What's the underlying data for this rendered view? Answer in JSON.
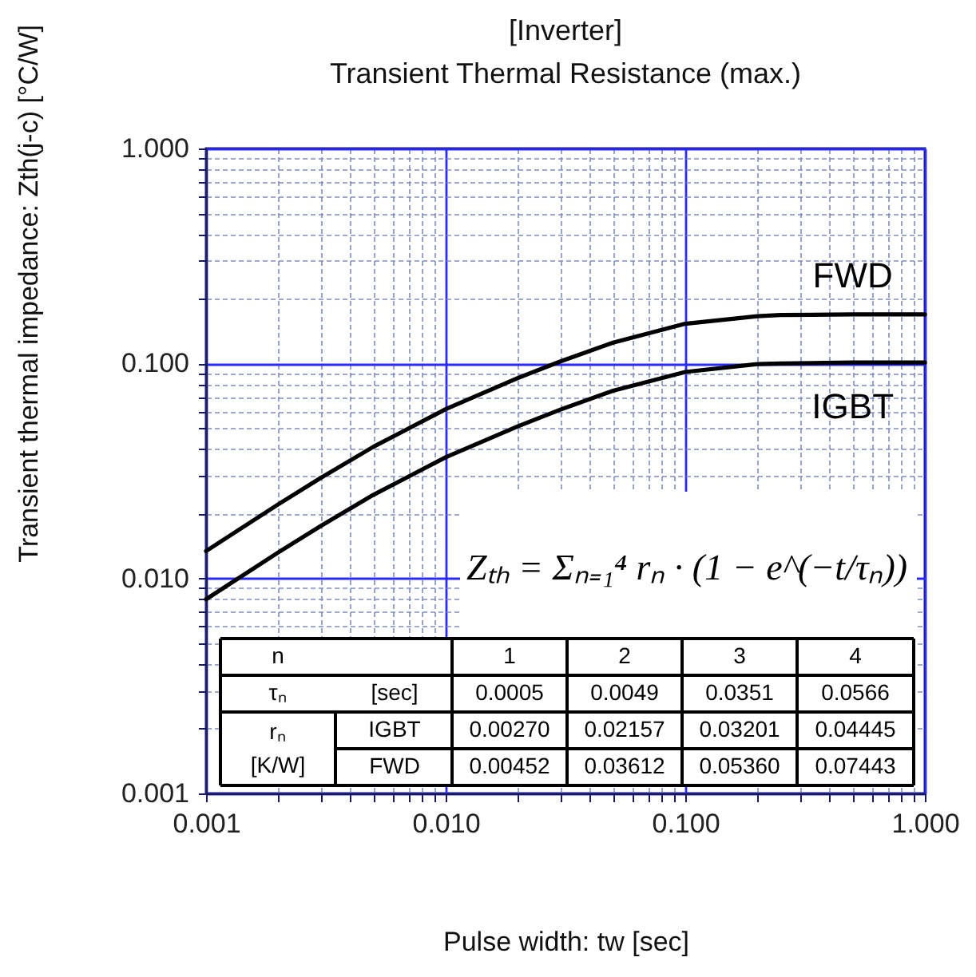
{
  "chart_data": {
    "type": "line",
    "title": "[Inverter]",
    "subtitle": "Transient Thermal Resistance (max.)",
    "xlabel": "Pulse width: tw [sec]",
    "ylabel": "Transient thermal impedance: Zth(j-c) [°C/W]",
    "x": [
      0.001,
      0.002,
      0.003,
      0.005,
      0.01,
      0.02,
      0.03,
      0.05,
      0.1,
      0.2,
      0.25,
      0.5,
      1
    ],
    "series": [
      {
        "name": "FWD",
        "color": "#000000",
        "values": [
          0.0134,
          0.0221,
          0.0293,
          0.041,
          0.0613,
          0.0855,
          0.102,
          0.125,
          0.153,
          0.166,
          0.168,
          0.169,
          0.169
        ]
      },
      {
        "name": "IGBT",
        "color": "#000000",
        "values": [
          0.008,
          0.0132,
          0.0175,
          0.0245,
          0.0366,
          0.051,
          0.0609,
          0.0747,
          0.0913,
          0.0993,
          0.1,
          0.101,
          0.101
        ]
      }
    ],
    "log": "xy",
    "xlim": [
      0.001,
      1
    ],
    "ylim": [
      0.001,
      1
    ],
    "xticks": [
      0.001,
      {
        "value": 0.002,
        "label": null
      },
      {
        "value": 0.003,
        "label": null
      },
      {
        "value": 0.004,
        "label": null
      },
      {
        "value": 0.005,
        "label": null
      },
      {
        "value": 0.006,
        "label": null
      },
      {
        "value": 0.007,
        "label": null
      },
      {
        "value": 0.008,
        "label": null
      },
      {
        "value": 0.009,
        "label": null
      },
      {
        "value": 0.01,
        "label": "0.010"
      },
      {
        "value": 0.02,
        "label": null
      },
      {
        "value": 0.03,
        "label": null
      },
      {
        "value": 0.04,
        "label": null
      },
      {
        "value": 0.05,
        "label": null
      },
      {
        "value": 0.06,
        "label": null
      },
      {
        "value": 0.07,
        "label": null
      },
      {
        "value": 0.08,
        "label": null
      },
      {
        "value": 0.09,
        "label": null
      },
      {
        "value": 0.1,
        "label": "0.100"
      },
      {
        "value": 0.2,
        "label": null
      },
      {
        "value": 0.3,
        "label": null
      },
      {
        "value": 0.4,
        "label": null
      },
      {
        "value": 0.5,
        "label": null
      },
      {
        "value": 0.6,
        "label": null
      },
      {
        "value": 0.7,
        "label": null
      },
      {
        "value": 0.8,
        "label": null
      },
      {
        "value": 0.9,
        "label": null
      },
      {
        "value": 1,
        "label": "1.000"
      }
    ],
    "yticks": [
      0.001,
      {
        "value": 0.002,
        "label": null
      },
      {
        "value": 0.003,
        "label": null
      },
      {
        "value": 0.004,
        "label": null
      },
      {
        "value": 0.005,
        "label": null
      },
      {
        "value": 0.006,
        "label": null
      },
      {
        "value": 0.007,
        "label": null
      },
      {
        "value": 0.008,
        "label": null
      },
      {
        "value": 0.009,
        "label": null
      },
      {
        "value": 0.01,
        "label": "0.010"
      },
      {
        "value": 0.02,
        "label": null
      },
      {
        "value": 0.03,
        "label": null
      },
      {
        "value": 0.04,
        "label": null
      },
      {
        "value": 0.05,
        "label": null
      },
      {
        "value": 0.06,
        "label": null
      },
      {
        "value": 0.07,
        "label": null
      },
      {
        "value": 0.08,
        "label": null
      },
      {
        "value": 0.09,
        "label": null
      },
      {
        "value": 0.1,
        "label": "0.100"
      },
      {
        "value": 0.2,
        "label": null
      },
      {
        "value": 0.3,
        "label": null
      },
      {
        "value": 0.4,
        "label": null
      },
      {
        "value": 0.5,
        "label": null
      },
      {
        "value": 0.6,
        "label": null
      },
      {
        "value": 0.7,
        "label": null
      },
      {
        "value": 0.8,
        "label": null
      },
      {
        "value": 0.9,
        "label": null
      },
      {
        "value": 1,
        "label": "1.000"
      }
    ],
    "grid": true,
    "legend": false,
    "marker": "none",
    "line_style": "solid",
    "annotations": [
      "Zₜₕ = Σₙ₌₁⁴ rₙ · (1 − e^(−t/τₙ))",
      "n",
      "1",
      "2",
      "3",
      "4",
      "τₙ",
      "[sec]",
      "0.0005",
      "0.0049",
      "0.0351",
      "0.0566",
      "rₙ",
      "[K/W]",
      "IGBT",
      "0.00270",
      "0.02157",
      "0.03201",
      "0.04445",
      "FWD",
      "0.00452",
      "0.03612",
      "0.05360",
      "0.07443"
    ]
  }
}
